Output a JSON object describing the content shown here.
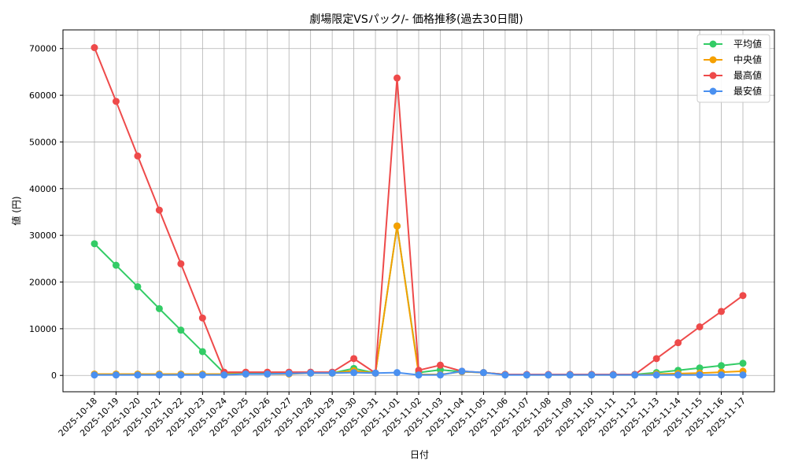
{
  "chart_data": {
    "type": "line",
    "title": "劇場限定VSパック/- 価格推移(過去30日間)",
    "xlabel": "日付",
    "ylabel": "値 (円)",
    "ylim": [
      -3500,
      74000
    ],
    "yticks": [
      0,
      10000,
      20000,
      30000,
      40000,
      50000,
      60000,
      70000
    ],
    "grid": true,
    "legend_position": "top-right",
    "categories": [
      "2025-10-18",
      "2025-10-19",
      "2025-10-20",
      "2025-10-21",
      "2025-10-22",
      "2025-10-23",
      "2025-10-24",
      "2025-10-25",
      "2025-10-26",
      "2025-10-27",
      "2025-10-28",
      "2025-10-29",
      "2025-10-30",
      "2025-10-31",
      "2025-11-01",
      "2025-11-02",
      "2025-11-03",
      "2025-11-04",
      "2025-11-05",
      "2025-11-06",
      "2025-11-07",
      "2025-11-08",
      "2025-11-09",
      "2025-11-10",
      "2025-11-11",
      "2025-11-12",
      "2025-11-13",
      "2025-11-14",
      "2025-11-15",
      "2025-11-16",
      "2025-11-17"
    ],
    "series": [
      {
        "name": "平均値",
        "color": "#33cc66",
        "values": [
          28200,
          23600,
          19000,
          14300,
          9700,
          5100,
          500,
          500,
          500,
          500,
          500,
          500,
          1500,
          500,
          32000,
          600,
          1200,
          800,
          600,
          200,
          150,
          150,
          200,
          200,
          200,
          200,
          600,
          1100,
          1600,
          2100,
          2600
        ]
      },
      {
        "name": "中央値",
        "color": "#f5a000",
        "values": [
          300,
          300,
          300,
          300,
          300,
          300,
          300,
          300,
          300,
          300,
          500,
          500,
          1000,
          500,
          32000,
          200,
          200,
          800,
          600,
          200,
          100,
          100,
          100,
          100,
          100,
          100,
          300,
          400,
          500,
          700,
          900
        ]
      },
      {
        "name": "最高値",
        "color": "#ee4a4a",
        "values": [
          70200,
          58700,
          47000,
          35400,
          23900,
          12300,
          700,
          700,
          700,
          700,
          700,
          700,
          3600,
          500,
          63700,
          1100,
          2200,
          900,
          600,
          200,
          200,
          200,
          200,
          200,
          200,
          200,
          3600,
          7000,
          10400,
          13700,
          17100
        ]
      },
      {
        "name": "最安値",
        "color": "#4a90f0",
        "values": [
          100,
          100,
          100,
          100,
          100,
          100,
          100,
          300,
          300,
          400,
          500,
          500,
          600,
          500,
          600,
          100,
          100,
          900,
          600,
          100,
          100,
          100,
          100,
          100,
          100,
          100,
          100,
          100,
          100,
          100,
          100
        ]
      }
    ]
  }
}
